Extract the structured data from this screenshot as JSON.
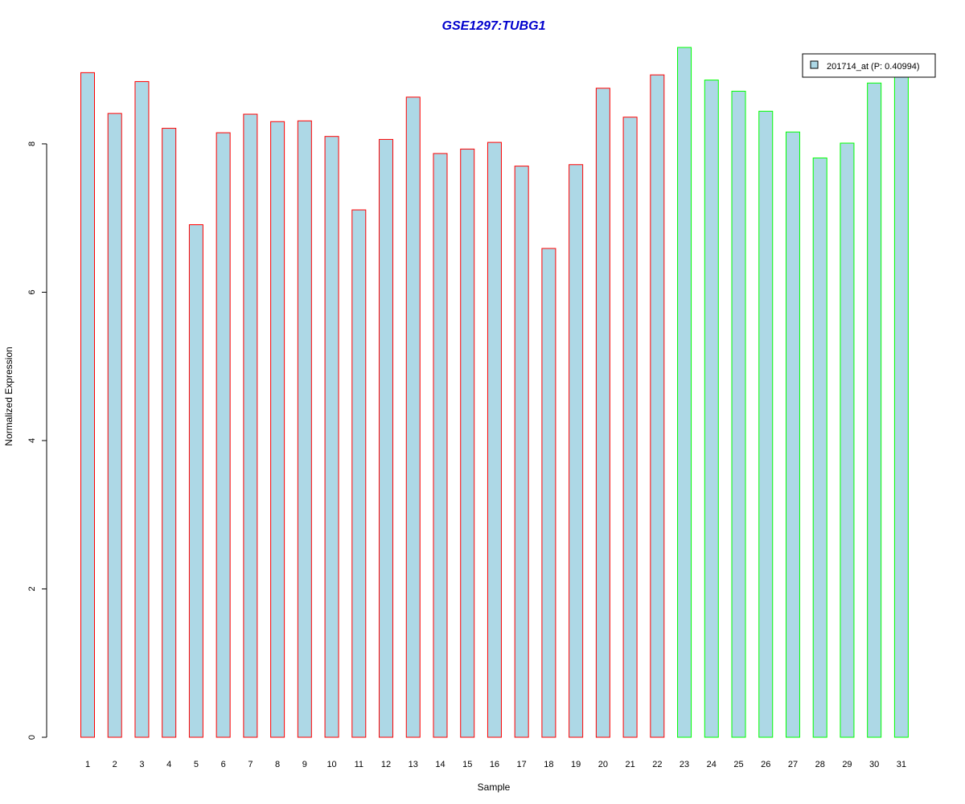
{
  "chart_data": {
    "type": "bar",
    "title": "GSE1297:TUBG1",
    "xlabel": "Sample",
    "ylabel": "Normalized Expression",
    "ylim": [
      0,
      9.3
    ],
    "yticks": [
      "0",
      "2",
      "4",
      "6",
      "8"
    ],
    "categories": [
      "1",
      "2",
      "3",
      "4",
      "5",
      "6",
      "7",
      "8",
      "9",
      "10",
      "11",
      "12",
      "13",
      "14",
      "15",
      "16",
      "17",
      "18",
      "19",
      "20",
      "21",
      "22",
      "23",
      "24",
      "25",
      "26",
      "27",
      "28",
      "29",
      "30",
      "31"
    ],
    "series": [
      {
        "name": "201714_at (P: 0.40994)",
        "values": [
          8.96,
          8.41,
          8.84,
          8.21,
          6.91,
          8.15,
          8.4,
          8.3,
          8.31,
          8.1,
          7.11,
          8.06,
          8.63,
          7.87,
          7.93,
          8.02,
          7.7,
          6.59,
          7.72,
          8.75,
          8.36,
          8.93,
          9.3,
          8.86,
          8.71,
          8.44,
          8.16,
          7.81,
          8.01,
          8.82,
          8.97
        ]
      }
    ],
    "groups": [
      "red",
      "red",
      "red",
      "red",
      "red",
      "red",
      "red",
      "red",
      "red",
      "red",
      "red",
      "red",
      "red",
      "red",
      "red",
      "red",
      "red",
      "red",
      "red",
      "red",
      "red",
      "red",
      "green",
      "green",
      "green",
      "green",
      "green",
      "green",
      "green",
      "green",
      "green"
    ],
    "legend_position": "top-right",
    "grid": false,
    "colors": {
      "fill": "#add8e6",
      "group_red": "#ff0000",
      "group_green": "#00ff00",
      "title": "#0000cd"
    }
  }
}
